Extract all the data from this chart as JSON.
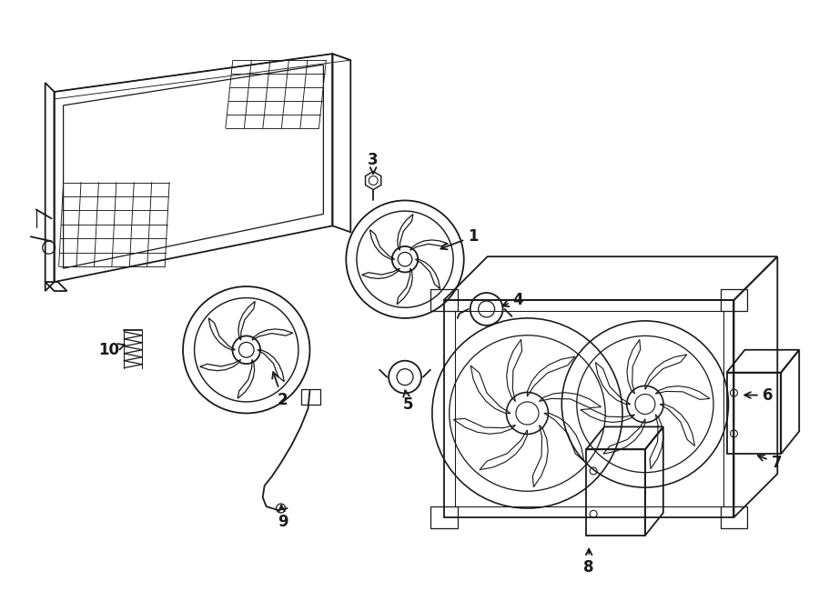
{
  "bg_color": "#ffffff",
  "line_color": "#1a1a1a",
  "lw": 1.3,
  "figsize": [
    9.0,
    6.61
  ],
  "dpi": 100
}
